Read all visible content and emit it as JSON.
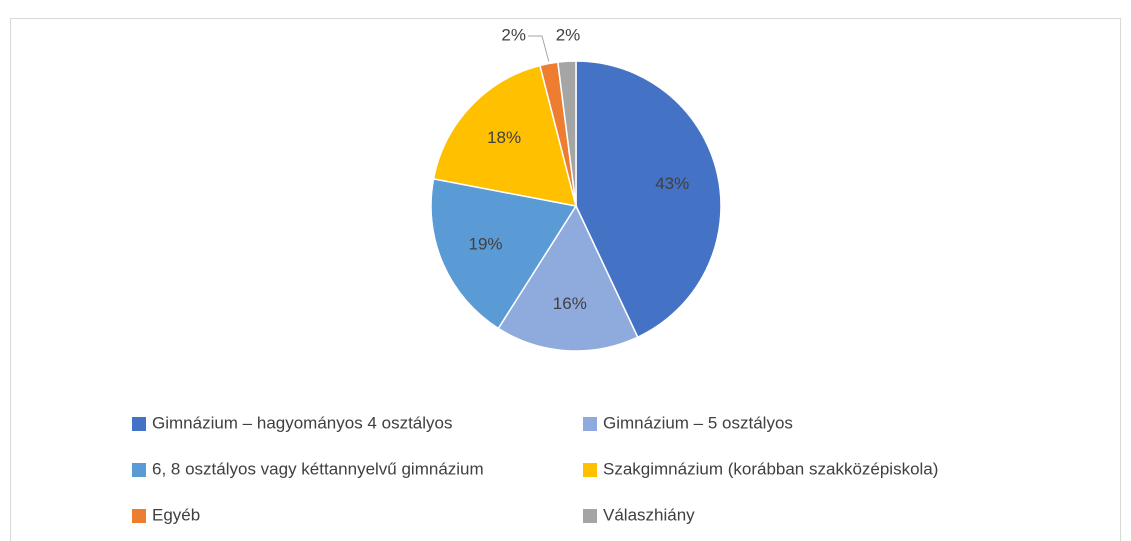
{
  "chart_data": {
    "type": "pie",
    "categories": [
      "Gimnázium – hagyományos 4 osztályos",
      "Gimnázium – 5 osztályos",
      "6, 8 osztályos vagy kéttannyelvű gimnázium",
      "Szakgimnázium (korábban szakközépiskola)",
      "Egyéb",
      "Válaszhiány"
    ],
    "values": [
      43,
      16,
      19,
      18,
      2,
      2
    ],
    "value_labels": [
      "43%",
      "16%",
      "19%",
      "18%",
      "2%",
      "2%"
    ],
    "colors": [
      "#4472c4",
      "#8faadc",
      "#5b9bd5",
      "#ffc000",
      "#ed7d31",
      "#a5a5a5"
    ],
    "legend": "bottom"
  }
}
